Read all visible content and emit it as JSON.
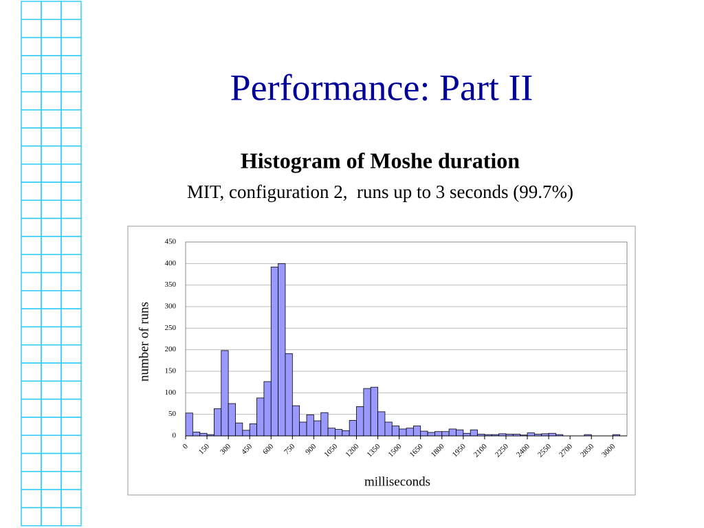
{
  "slide_title": "Performance: Part II",
  "chart_data": {
    "type": "histogram",
    "title": "Histogram of Moshe duration",
    "subtitle": "MIT, configuration 2,  runs up to 3 seconds (99.7%)",
    "xlabel": "milliseconds",
    "ylabel": "number of runs",
    "bins": [
      0,
      50,
      100,
      150,
      200,
      250,
      300,
      350,
      400,
      450,
      500,
      550,
      600,
      650,
      700,
      750,
      800,
      850,
      900,
      950,
      1000,
      1050,
      1100,
      1150,
      1200,
      1250,
      1300,
      1350,
      1400,
      1450,
      1500,
      1550,
      1600,
      1650,
      1700,
      1750,
      1800,
      1850,
      1900,
      1950,
      2000,
      2050,
      2100,
      2150,
      2200,
      2250,
      2300,
      2350,
      2400,
      2450,
      2500,
      2550,
      2600,
      2650,
      2700,
      2750,
      2800,
      2850,
      2900,
      2950,
      3000,
      3050,
      3100
    ],
    "counts": [
      53,
      9,
      6,
      3,
      63,
      198,
      75,
      30,
      13,
      28,
      88,
      126,
      392,
      400,
      191,
      70,
      32,
      49,
      35,
      54,
      18,
      15,
      12,
      36,
      68,
      110,
      113,
      56,
      32,
      23,
      16,
      18,
      23,
      11,
      8,
      10,
      10,
      16,
      14,
      6,
      14,
      4,
      3,
      3,
      5,
      4,
      4,
      2,
      7,
      4,
      5,
      6,
      3,
      0,
      0,
      0,
      3,
      0,
      0,
      0,
      3,
      0
    ],
    "color": "#9999ff",
    "xlim": [
      0,
      3100
    ],
    "xticks": [
      0,
      150,
      300,
      450,
      600,
      750,
      900,
      1050,
      1200,
      1350,
      1500,
      1650,
      1800,
      1950,
      2100,
      2250,
      2400,
      2550,
      2700,
      2850,
      3000
    ],
    "ylim": [
      0,
      450
    ],
    "yticks": [
      0,
      50,
      100,
      150,
      200,
      250,
      300,
      350,
      400,
      450
    ],
    "grid": true
  }
}
